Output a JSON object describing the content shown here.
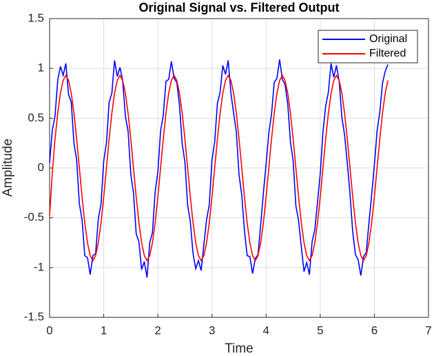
{
  "chart_data": {
    "type": "line",
    "title": "Original Signal vs. Filtered Output",
    "x_label": "Time",
    "y_label": "Amplitude",
    "x": [
      0,
      0.05,
      0.1,
      0.15,
      0.2,
      0.25,
      0.3,
      0.35,
      0.4,
      0.45,
      0.5,
      0.55,
      0.6,
      0.65,
      0.7,
      0.75,
      0.8,
      0.85,
      0.9,
      0.95,
      1,
      1.05,
      1.1,
      1.15,
      1.2,
      1.25,
      1.3,
      1.35,
      1.4,
      1.45,
      1.5,
      1.55,
      1.6,
      1.65,
      1.7,
      1.75,
      1.8,
      1.85,
      1.9,
      1.95,
      2,
      2.05,
      2.1,
      2.15,
      2.2,
      2.25,
      2.3,
      2.35,
      2.4,
      2.45,
      2.5,
      2.55,
      2.6,
      2.65,
      2.7,
      2.75,
      2.8,
      2.85,
      2.9,
      2.95,
      3,
      3.05,
      3.1,
      3.15,
      3.2,
      3.25,
      3.3,
      3.35,
      3.4,
      3.45,
      3.5,
      3.55,
      3.6,
      3.65,
      3.7,
      3.75,
      3.8,
      3.85,
      3.9,
      3.95,
      4,
      4.05,
      4.1,
      4.15,
      4.2,
      4.25,
      4.3,
      4.35,
      4.4,
      4.45,
      4.5,
      4.55,
      4.6,
      4.65,
      4.7,
      4.75,
      4.8,
      4.85,
      4.9,
      4.95,
      5,
      5.05,
      5.1,
      5.15,
      5.2,
      5.25,
      5.3,
      5.35,
      5.4,
      5.45,
      5.5,
      5.55,
      5.6,
      5.65,
      5.7,
      5.75,
      5.8,
      5.85,
      5.9,
      5.95,
      6,
      6.05,
      6.1,
      6.15,
      6.2,
      6.25
    ],
    "series": [
      {
        "name": "Original",
        "color": "#0000ff",
        "values": [
          0.05,
          0.38,
          0.52,
          0.88,
          1.02,
          0.93,
          1.05,
          0.74,
          0.66,
          0.25,
          0.08,
          -0.36,
          -0.52,
          -0.88,
          -0.9,
          -1.07,
          -0.88,
          -0.86,
          -0.51,
          -0.36,
          0.07,
          0.25,
          0.66,
          0.75,
          1.08,
          0.92,
          1.01,
          0.88,
          0.52,
          0.37,
          -0.06,
          -0.25,
          -0.66,
          -0.74,
          -1.02,
          -0.94,
          -1.1,
          -0.75,
          -0.65,
          -0.24,
          -0.04,
          0.37,
          0.53,
          0.87,
          0.89,
          1.07,
          0.9,
          0.86,
          0.63,
          0.24,
          0.06,
          -0.37,
          -0.54,
          -0.86,
          -1.01,
          -0.93,
          -1.03,
          -0.77,
          -0.52,
          -0.37,
          0.08,
          0.26,
          0.65,
          0.76,
          1.03,
          0.94,
          1.08,
          0.75,
          0.55,
          0.36,
          -0.07,
          -0.27,
          -0.63,
          -0.88,
          -0.89,
          -1.06,
          -0.91,
          -0.87,
          -0.57,
          -0.25,
          0.04,
          0.35,
          0.54,
          0.86,
          0.9,
          1.09,
          0.89,
          0.84,
          0.64,
          0.26,
          0.07,
          -0.38,
          -0.53,
          -0.79,
          -1.04,
          -0.95,
          -1.07,
          -0.74,
          -0.62,
          -0.34,
          -0.06,
          0.36,
          0.62,
          0.76,
          1.05,
          0.91,
          1.03,
          0.87,
          0.51,
          0.33,
          0.05,
          -0.26,
          -0.64,
          -0.87,
          -0.92,
          -1.08,
          -0.89,
          -0.85,
          -0.55,
          -0.27,
          0.03,
          0.37,
          0.56,
          0.85,
          0.97,
          1.04
        ]
      },
      {
        "name": "Filtered",
        "color": "#ff0000",
        "values": [
          -0.48,
          -0.05,
          0.29,
          0.55,
          0.75,
          0.88,
          0.93,
          0.88,
          0.75,
          0.55,
          0.29,
          0,
          -0.29,
          -0.55,
          -0.75,
          -0.88,
          -0.93,
          -0.88,
          -0.75,
          -0.55,
          -0.29,
          0,
          0.29,
          0.55,
          0.75,
          0.88,
          0.93,
          0.88,
          0.75,
          0.55,
          0.29,
          0,
          -0.29,
          -0.55,
          -0.75,
          -0.88,
          -0.93,
          -0.88,
          -0.75,
          -0.55,
          -0.29,
          0,
          0.29,
          0.55,
          0.75,
          0.88,
          0.93,
          0.88,
          0.75,
          0.55,
          0.29,
          0,
          -0.29,
          -0.55,
          -0.75,
          -0.88,
          -0.93,
          -0.88,
          -0.75,
          -0.55,
          -0.29,
          0,
          0.29,
          0.55,
          0.75,
          0.88,
          0.93,
          0.88,
          0.75,
          0.55,
          0.29,
          0,
          -0.29,
          -0.55,
          -0.75,
          -0.88,
          -0.93,
          -0.88,
          -0.75,
          -0.55,
          -0.29,
          0,
          0.29,
          0.55,
          0.75,
          0.88,
          0.93,
          0.88,
          0.75,
          0.55,
          0.29,
          0,
          -0.29,
          -0.55,
          -0.75,
          -0.88,
          -0.93,
          -0.88,
          -0.75,
          -0.55,
          -0.29,
          0,
          0.29,
          0.55,
          0.75,
          0.88,
          0.93,
          0.88,
          0.75,
          0.55,
          0.29,
          0,
          -0.29,
          -0.55,
          -0.75,
          -0.88,
          -0.93,
          -0.88,
          -0.75,
          -0.55,
          -0.29,
          0,
          0.29,
          0.55,
          0.75,
          0.88
        ]
      }
    ],
    "xlim": [
      0,
      7
    ],
    "xticks": [
      0,
      1,
      2,
      3,
      4,
      5,
      6,
      7
    ],
    "ylim": [
      -1.5,
      1.5
    ],
    "yticks": [
      -1.5,
      -1,
      -0.5,
      0,
      0.5,
      1,
      1.5
    ],
    "grid": true,
    "legend": "northeast"
  }
}
